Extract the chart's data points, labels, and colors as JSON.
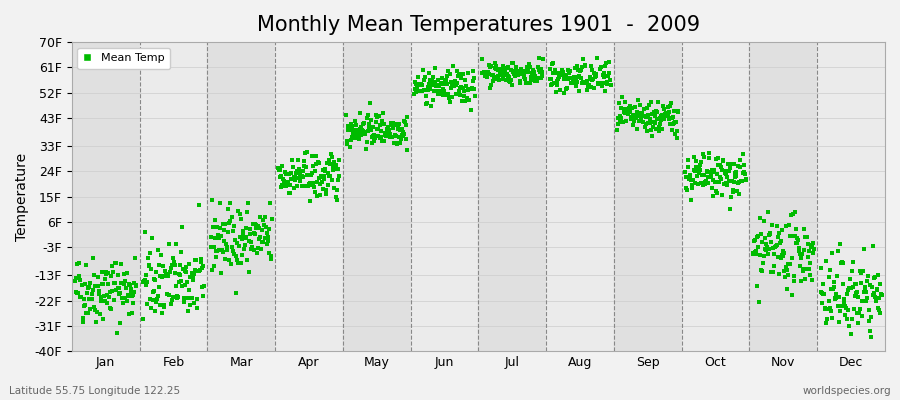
{
  "title": "Monthly Mean Temperatures 1901  -  2009",
  "ylabel": "Temperature",
  "footer_left": "Latitude 55.75 Longitude 122.25",
  "footer_right": "worldspecies.org",
  "legend_label": "Mean Temp",
  "ylim": [
    -40,
    70
  ],
  "yticks": [
    -40,
    -31,
    -22,
    -13,
    -3,
    6,
    15,
    24,
    33,
    43,
    52,
    61,
    70
  ],
  "ytick_labels": [
    "-40F",
    "-31F",
    "-22F",
    "-13F",
    "-3F",
    "6F",
    "15F",
    "24F",
    "33F",
    "43F",
    "52F",
    "61F",
    "70F"
  ],
  "months": [
    "Jan",
    "Feb",
    "Mar",
    "Apr",
    "May",
    "Jun",
    "Jul",
    "Aug",
    "Sep",
    "Oct",
    "Nov",
    "Dec"
  ],
  "month_means_F": [
    -18,
    -15,
    0,
    22,
    39,
    54,
    59,
    57,
    43,
    22,
    -5,
    -20
  ],
  "month_stds_F": [
    6,
    7,
    6,
    4,
    3,
    3,
    2,
    3,
    3,
    4,
    6,
    7
  ],
  "n_years": 109,
  "dot_color": "#00BB00",
  "dot_size": 7,
  "bg_color": "#F2F2F2",
  "plot_bg_light": "#EBEBEB",
  "plot_bg_dark": "#E0E0E0",
  "grid_color": "#888888",
  "title_fontsize": 15,
  "axis_label_fontsize": 10,
  "tick_fontsize": 9,
  "random_seed": 42
}
